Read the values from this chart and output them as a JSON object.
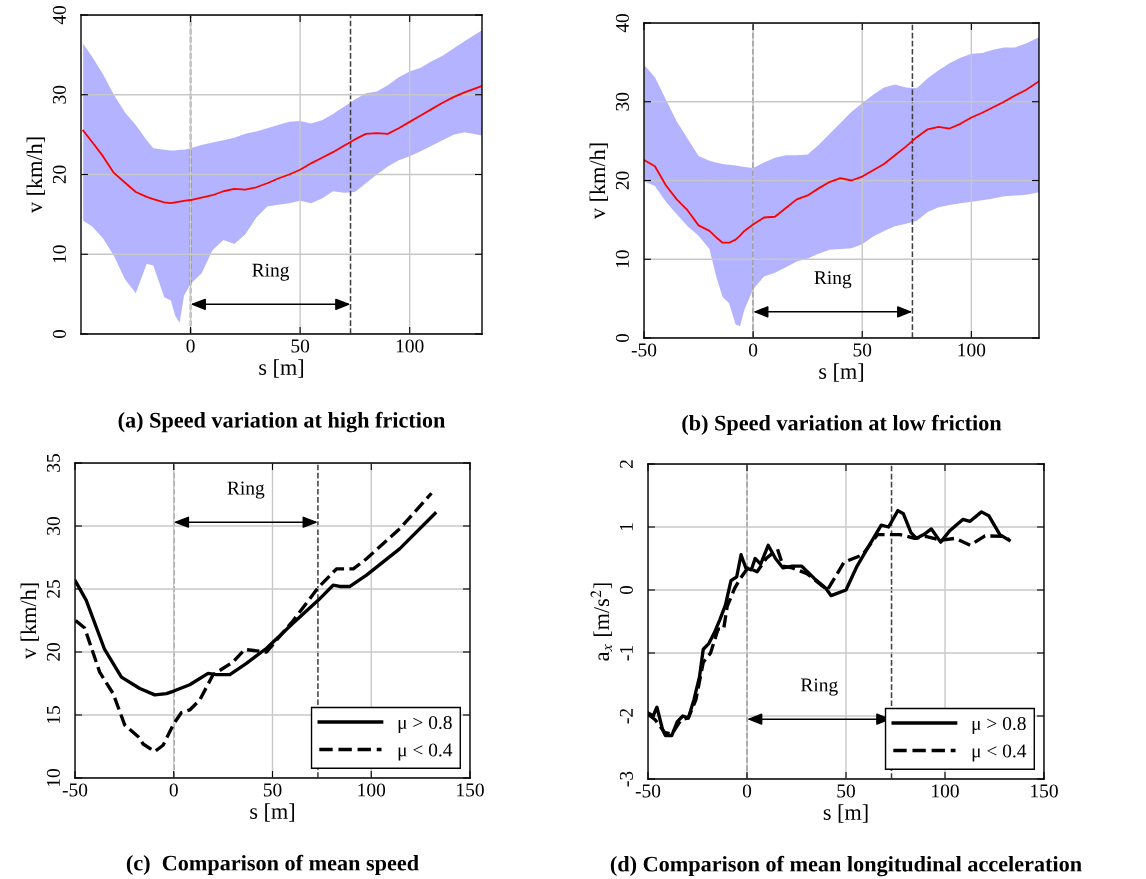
{
  "chart_data": [
    {
      "type": "line",
      "title": "(a) Speed variation at high friction",
      "xlabel": "s [m]",
      "ylabel": "v [km/h]",
      "xlim": [
        -50,
        133
      ],
      "xticks": [
        0,
        50,
        100
      ],
      "ylim": [
        0,
        40
      ],
      "yticks": [
        0,
        10,
        20,
        30,
        40
      ],
      "grid": true,
      "series": [
        {
          "color": "#ff0000",
          "line_style": "solid",
          "x": [
            -49,
            -45,
            -40,
            -35,
            -30,
            -25,
            -20,
            -17,
            -12,
            -9,
            -7,
            -5,
            -3,
            0,
            5,
            10,
            15,
            20,
            25,
            30,
            35,
            40,
            45,
            50,
            55,
            60,
            65,
            70,
            75,
            80,
            85,
            90,
            95,
            100,
            105,
            110,
            115,
            120,
            125,
            133
          ],
          "values": [
            25.5,
            24.1,
            22.3,
            20.2,
            19.0,
            17.8,
            17.2,
            16.9,
            16.5,
            16.4,
            16.5,
            16.6,
            16.7,
            16.8,
            17.1,
            17.4,
            17.9,
            18.2,
            18.1,
            18.4,
            18.9,
            19.5,
            20.0,
            20.6,
            21.4,
            22.1,
            22.8,
            23.6,
            24.4,
            25.1,
            25.2,
            25.1,
            25.8,
            26.6,
            27.4,
            28.2,
            29.0,
            29.7,
            30.3,
            31.1
          ],
          "upper": [
            36.4,
            34.8,
            32.6,
            30.0,
            27.8,
            26.2,
            24.3,
            23.3,
            23.1,
            23.0,
            23.0,
            23.1,
            23.1,
            23.3,
            23.7,
            24.0,
            24.3,
            24.6,
            25.1,
            25.4,
            25.8,
            26.2,
            26.6,
            26.7,
            26.4,
            26.8,
            27.6,
            28.5,
            29.4,
            30.2,
            30.4,
            31.2,
            32.2,
            32.9,
            33.4,
            34.2,
            34.9,
            35.8,
            36.7,
            38.1
          ],
          "lower": [
            14.2,
            13.5,
            12.0,
            9.8,
            6.9,
            5.1,
            8.8,
            8.6,
            4.6,
            4.2,
            2.3,
            1.4,
            4.8,
            6.3,
            7.6,
            10.5,
            11.8,
            11.3,
            12.5,
            14.6,
            16.0,
            16.2,
            16.4,
            16.7,
            16.4,
            17.0,
            17.9,
            17.7,
            17.8,
            18.9,
            20.0,
            21.0,
            21.8,
            22.3,
            22.9,
            23.6,
            24.3,
            25.0,
            25.3,
            24.9
          ]
        }
      ],
      "ref_lines": [
        {
          "axis": "x",
          "value": 0,
          "color": "#404040",
          "line_style": "dashed"
        },
        {
          "axis": "x",
          "value": 73,
          "color": "#404040",
          "line_style": "dashed"
        }
      ],
      "annotations": [
        "Ring"
      ]
    },
    {
      "type": "line",
      "title": "(b) Speed variation at low friction",
      "xlabel": "s [m]",
      "ylabel": "v [km/h]",
      "xlim": [
        -50,
        131
      ],
      "xticks": [
        -50,
        0,
        50,
        100
      ],
      "ylim": [
        0,
        40
      ],
      "yticks": [
        0,
        10,
        20,
        30,
        40
      ],
      "grid": true,
      "series": [
        {
          "color": "#ff0000",
          "line_style": "solid",
          "x": [
            -50,
            -45,
            -40,
            -35,
            -30,
            -25,
            -20,
            -17,
            -14,
            -11,
            -8,
            -6,
            -4,
            0,
            5,
            10,
            15,
            20,
            25,
            30,
            35,
            40,
            45,
            50,
            55,
            60,
            65,
            70,
            75,
            80,
            85,
            90,
            95,
            100,
            105,
            110,
            115,
            120,
            125,
            131
          ],
          "values": [
            22.6,
            21.8,
            19.4,
            17.6,
            16.2,
            14.3,
            13.6,
            12.8,
            12.1,
            12.1,
            12.5,
            13.0,
            13.6,
            14.4,
            15.3,
            15.4,
            16.5,
            17.6,
            18.1,
            19.0,
            19.8,
            20.3,
            20.0,
            20.5,
            21.3,
            22.1,
            23.2,
            24.3,
            25.5,
            26.5,
            26.8,
            26.6,
            27.2,
            28.0,
            28.6,
            29.3,
            30.0,
            30.8,
            31.5,
            32.6
          ],
          "upper": [
            34.7,
            33.1,
            30.3,
            27.5,
            25.3,
            23.1,
            22.5,
            22.3,
            22.1,
            22.0,
            21.9,
            21.8,
            21.7,
            21.6,
            22.3,
            22.9,
            23.2,
            23.2,
            23.3,
            24.5,
            25.9,
            27.3,
            28.7,
            29.8,
            30.9,
            31.8,
            32.2,
            31.8,
            31.7,
            33.0,
            34.0,
            34.9,
            35.6,
            36.1,
            36.2,
            36.6,
            36.9,
            36.9,
            37.4,
            38.2
          ],
          "lower": [
            19.9,
            19.3,
            17.3,
            15.7,
            14.2,
            13.0,
            11.3,
            7.9,
            5.2,
            4.4,
            1.7,
            1.5,
            3.6,
            6.2,
            7.8,
            8.3,
            9.0,
            9.7,
            10.1,
            10.7,
            11.2,
            11.3,
            11.4,
            11.9,
            12.9,
            13.6,
            14.2,
            14.5,
            14.9,
            16.0,
            16.6,
            16.9,
            17.1,
            17.3,
            17.5,
            17.7,
            18.0,
            18.1,
            18.2,
            18.5
          ]
        }
      ],
      "ref_lines": [
        {
          "axis": "x",
          "value": 0,
          "color": "#404040",
          "line_style": "dashed"
        },
        {
          "axis": "x",
          "value": 73,
          "color": "#404040",
          "line_style": "dashed"
        }
      ],
      "annotations": [
        "Ring"
      ]
    },
    {
      "type": "line",
      "title": "(c)  Comparison of mean speed",
      "xlabel": "s [m]",
      "ylabel": "v [km/h]",
      "xlim": [
        -50,
        150
      ],
      "xticks": [
        -50,
        0,
        50,
        100,
        150
      ],
      "ylim": [
        10,
        35
      ],
      "yticks": [
        10,
        15,
        20,
        25,
        30,
        35
      ],
      "grid": true,
      "legend": "bottom right",
      "series": [
        {
          "name": "μ > 0.8",
          "color": "#000000",
          "line_style": "solid",
          "x": [
            -49.7,
            -44.3,
            -35,
            -26.5,
            -17.2,
            -9.6,
            -3.7,
            0,
            8.1,
            17.4,
            21.6,
            28.4,
            36.8,
            47,
            60.5,
            73.1,
            80.7,
            84.1,
            89.2,
            97.6,
            114.5,
            132.3
          ],
          "values": [
            25.6,
            24.1,
            20.2,
            18.0,
            17.1,
            16.6,
            16.7,
            16.9,
            17.4,
            18.3,
            18.2,
            18.2,
            19.1,
            20.3,
            22.3,
            24.1,
            25.3,
            25.2,
            25.2,
            26.1,
            28.2,
            31.0
          ]
        },
        {
          "name": "μ < 0.4",
          "color": "#000000",
          "line_style": "dashed",
          "x": [
            -49.7,
            -45.1,
            -37.5,
            -30.7,
            -24.8,
            -18.1,
            -15.5,
            -9.6,
            -5.4,
            0,
            3.9,
            8.1,
            13.2,
            19.9,
            30,
            35.9,
            47,
            60.5,
            73.1,
            82.4,
            90.9,
            97.6,
            114.5,
            130.5
          ],
          "values": [
            22.5,
            21.9,
            18.4,
            16.7,
            14.2,
            13.3,
            12.7,
            12.1,
            12.6,
            14.3,
            15.2,
            15.4,
            16.2,
            18.2,
            19.2,
            20.2,
            20.0,
            22.5,
            25.1,
            26.6,
            26.6,
            27.4,
            29.8,
            32.6
          ]
        }
      ],
      "ref_lines": [
        {
          "axis": "x",
          "value": 0,
          "color": "#404040",
          "line_style": "dashed"
        },
        {
          "axis": "x",
          "value": 73,
          "color": "#404040",
          "line_style": "dashed"
        }
      ],
      "annotations": [
        "Ring"
      ]
    },
    {
      "type": "line",
      "title": "(d) Comparison of mean longitudinal acceleration",
      "xlabel": "s [m]",
      "ylabel": "a$_{x}$ [m/s$^{2}$]",
      "xlim": [
        -50,
        150
      ],
      "xticks": [
        -50,
        0,
        50,
        100,
        150
      ],
      "ylim": [
        -3,
        2
      ],
      "yticks": [
        -3,
        -2,
        -1,
        0,
        1,
        2
      ],
      "grid": true,
      "legend": "bottom right",
      "series": [
        {
          "name": "μ > 0.8",
          "color": "#000000",
          "line_style": "solid",
          "x": [
            -50,
            -47.4,
            -45.5,
            -42.7,
            -41.2,
            -38,
            -35.2,
            -32.4,
            -29.6,
            -26.8,
            -24,
            -22.1,
            -19.3,
            -16.5,
            -13.7,
            -10.9,
            -8.1,
            -5.2,
            -3,
            -0.6,
            2.2,
            4.1,
            6.9,
            10.7,
            14.4,
            18.2,
            22.8,
            27.5,
            34.1,
            39.7,
            42.5,
            50,
            55.6,
            61.2,
            67.8,
            71.5,
            76.2,
            79,
            82.8,
            85.6,
            89.3,
            93.1,
            97.8,
            102.4,
            109,
            112.7,
            118.4,
            122.1,
            127.7,
            132.4
          ],
          "values": [
            -1.95,
            -2.0,
            -1.86,
            -2.21,
            -2.31,
            -2.31,
            -2.09,
            -2.0,
            -2.03,
            -1.74,
            -1.38,
            -0.94,
            -0.85,
            -0.68,
            -0.47,
            -0.24,
            0.15,
            0.21,
            0.56,
            0.35,
            0.32,
            0.5,
            0.41,
            0.71,
            0.5,
            0.35,
            0.38,
            0.38,
            0.18,
            0.03,
            -0.09,
            0.0,
            0.38,
            0.68,
            1.03,
            1.0,
            1.26,
            1.21,
            0.91,
            0.82,
            0.88,
            0.97,
            0.76,
            0.94,
            1.12,
            1.09,
            1.24,
            1.18,
            0.88,
            0.79
          ]
        },
        {
          "name": "μ < 0.4",
          "color": "#000000",
          "line_style": "dashed",
          "x": [
            -50,
            -46.4,
            -41.6,
            -38,
            -33.3,
            -29.6,
            -25.8,
            -22.1,
            -18.4,
            -14.6,
            -11.8,
            -10,
            -6.2,
            -3.4,
            0.4,
            5.1,
            9.7,
            15.4,
            18.2,
            22.8,
            30.3,
            40.6,
            49,
            58.4,
            65.9,
            73.4,
            77.2,
            84.6,
            90.3,
            97.8,
            105.2,
            112.7,
            120.2,
            129.6,
            132.4
          ],
          "values": [
            -1.97,
            -2.06,
            -2.26,
            -2.29,
            -2.06,
            -2.03,
            -1.74,
            -1.15,
            -1.0,
            -0.62,
            -0.62,
            -0.26,
            0.03,
            0.18,
            0.35,
            0.29,
            0.5,
            0.65,
            0.38,
            0.35,
            0.26,
            0.0,
            0.44,
            0.56,
            0.88,
            0.88,
            0.88,
            0.82,
            0.85,
            0.79,
            0.82,
            0.71,
            0.86,
            0.85,
            0.8
          ]
        }
      ],
      "ref_lines": [
        {
          "axis": "x",
          "value": 0,
          "color": "#404040",
          "line_style": "dashed"
        },
        {
          "axis": "x",
          "value": 73,
          "color": "#404040",
          "line_style": "dashed"
        }
      ],
      "annotations": [
        "Ring"
      ]
    }
  ]
}
